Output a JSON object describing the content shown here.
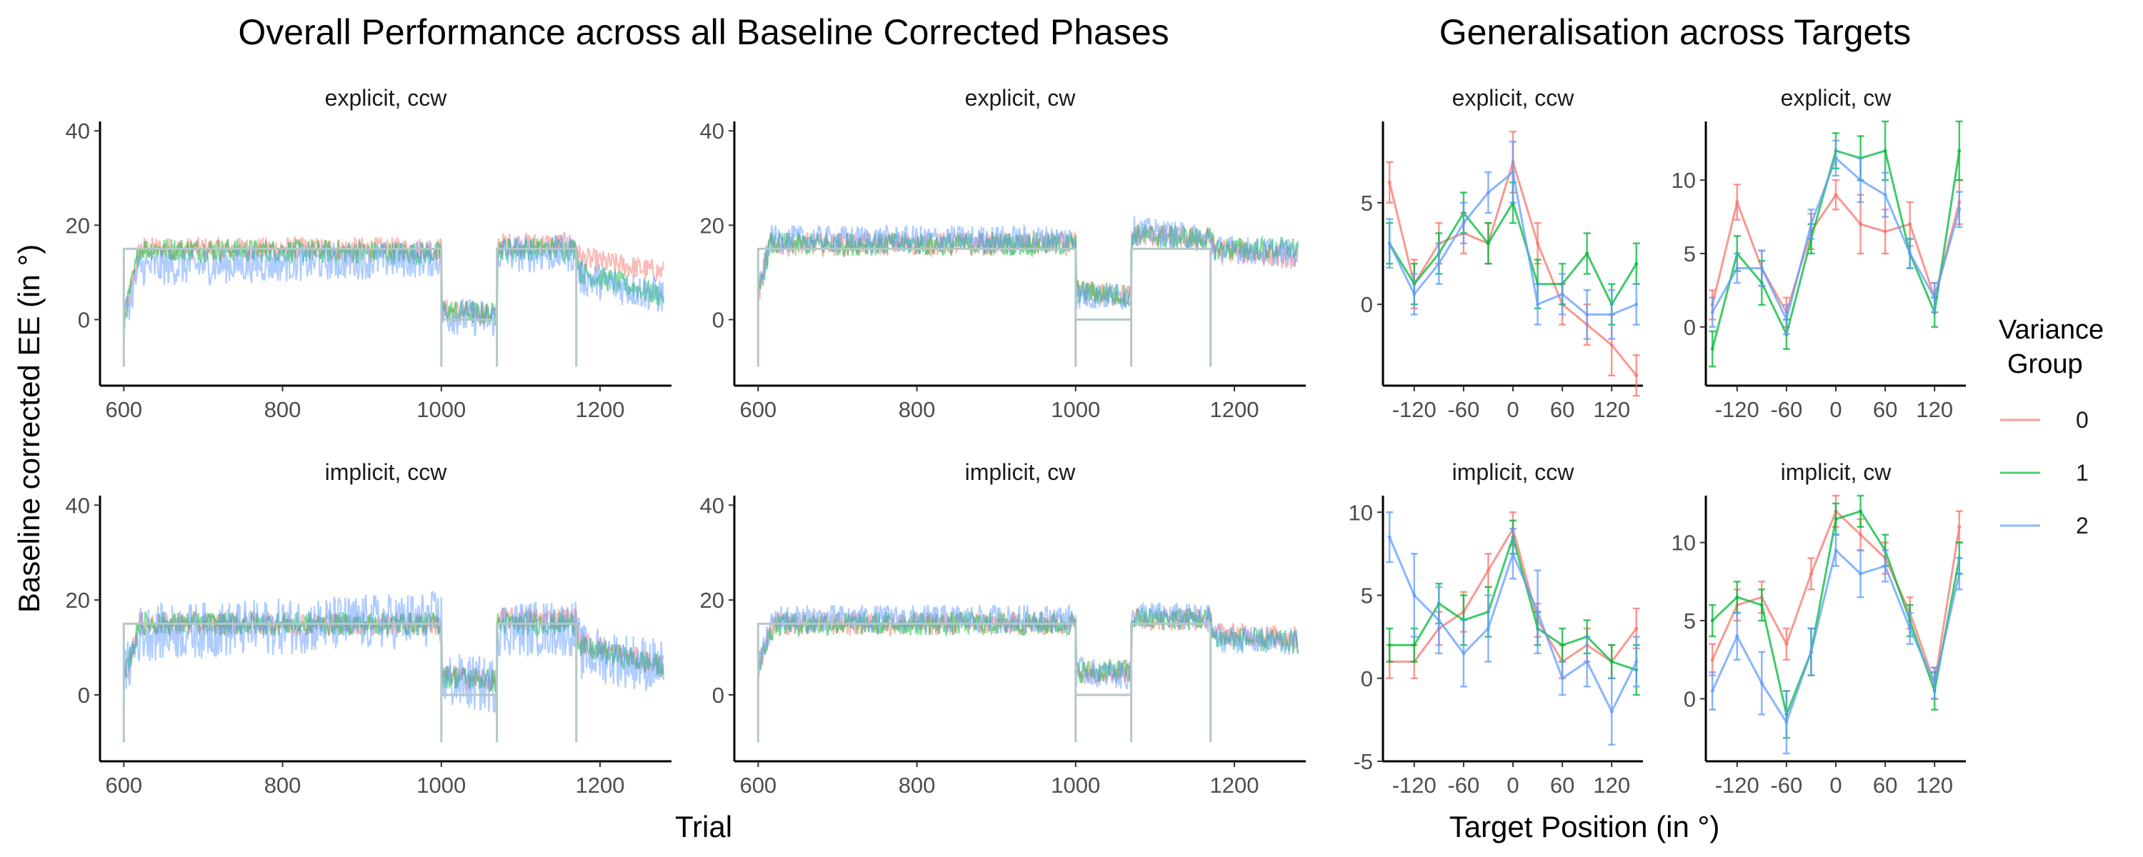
{
  "figure": {
    "title_left": "Overall Performance across all Baseline Corrected Phases",
    "title_right": "Generalisation across Targets",
    "ylabel_left": "Baseline corrected EE (in °)",
    "xlabel_left": "Trial",
    "xlabel_right": "Target Position (in °)"
  },
  "legend": {
    "title_line1": "Variance",
    "title_line2": "Group",
    "items": [
      {
        "label": "0",
        "color": "#F8766D"
      },
      {
        "label": "1",
        "color": "#00BA38"
      },
      {
        "label": "2",
        "color": "#619CFF"
      }
    ]
  },
  "chart_data": [
    {
      "type": "line",
      "panel": "explicit, ccw",
      "group": "performance",
      "xlim": [
        570,
        1290
      ],
      "ylim": [
        -14,
        42
      ],
      "xticks": [
        600,
        800,
        1000,
        1200
      ],
      "yticks": [
        0,
        20,
        40
      ],
      "reference_schedule": [
        [
          600,
          -10
        ],
        [
          600,
          15
        ],
        [
          1000,
          15
        ],
        [
          1000,
          -10
        ],
        [
          1000,
          0
        ],
        [
          1070,
          0
        ],
        [
          1070,
          -10
        ],
        [
          1070,
          15
        ],
        [
          1170,
          15
        ],
        [
          1170,
          -10
        ]
      ],
      "series_segments": {
        "0": [
          [
            600,
            0
          ],
          [
            620,
            15
          ],
          [
            1000,
            15
          ],
          [
            1000,
            2
          ],
          [
            1070,
            1
          ],
          [
            1070,
            16
          ],
          [
            1170,
            16
          ],
          [
            1175,
            13
          ],
          [
            1280,
            10
          ]
        ],
        "1": [
          [
            600,
            0
          ],
          [
            620,
            15
          ],
          [
            1000,
            14
          ],
          [
            1000,
            2
          ],
          [
            1070,
            1
          ],
          [
            1070,
            15
          ],
          [
            1170,
            15
          ],
          [
            1175,
            10
          ],
          [
            1280,
            5
          ]
        ],
        "2": [
          [
            600,
            0
          ],
          [
            620,
            11
          ],
          [
            1000,
            13
          ],
          [
            1000,
            1
          ],
          [
            1070,
            0
          ],
          [
            1070,
            14
          ],
          [
            1170,
            14
          ],
          [
            1175,
            9
          ],
          [
            1280,
            5
          ]
        ]
      },
      "noise": {
        "0": 2.5,
        "1": 2.5,
        "2": 4
      }
    },
    {
      "type": "line",
      "panel": "explicit, cw",
      "group": "performance",
      "xlim": [
        570,
        1290
      ],
      "ylim": [
        -14,
        42
      ],
      "xticks": [
        600,
        800,
        1000,
        1200
      ],
      "yticks": [
        0,
        20,
        40
      ],
      "reference_schedule": [
        [
          600,
          -10
        ],
        [
          600,
          15
        ],
        [
          1000,
          15
        ],
        [
          1000,
          -10
        ],
        [
          1000,
          0
        ],
        [
          1070,
          0
        ],
        [
          1070,
          -10
        ],
        [
          1070,
          15
        ],
        [
          1170,
          15
        ],
        [
          1170,
          -10
        ]
      ],
      "series_segments": {
        "0": [
          [
            600,
            5
          ],
          [
            615,
            16
          ],
          [
            1000,
            16
          ],
          [
            1000,
            6
          ],
          [
            1070,
            5
          ],
          [
            1070,
            18
          ],
          [
            1170,
            17
          ],
          [
            1175,
            15
          ],
          [
            1280,
            13
          ]
        ],
        "1": [
          [
            600,
            5
          ],
          [
            615,
            16
          ],
          [
            1000,
            16
          ],
          [
            1000,
            6
          ],
          [
            1070,
            5
          ],
          [
            1070,
            18
          ],
          [
            1170,
            17
          ],
          [
            1175,
            15
          ],
          [
            1280,
            15
          ]
        ],
        "2": [
          [
            600,
            5
          ],
          [
            615,
            17
          ],
          [
            1000,
            17
          ],
          [
            1000,
            5
          ],
          [
            1070,
            5
          ],
          [
            1070,
            19
          ],
          [
            1170,
            17
          ],
          [
            1175,
            15
          ],
          [
            1280,
            14
          ]
        ]
      },
      "noise": {
        "0": 2.5,
        "1": 2.5,
        "2": 3
      }
    },
    {
      "type": "line",
      "panel": "implicit, ccw",
      "group": "performance",
      "xlim": [
        570,
        1290
      ],
      "ylim": [
        -14,
        42
      ],
      "xticks": [
        600,
        800,
        1000,
        1200
      ],
      "yticks": [
        0,
        20,
        40
      ],
      "reference_schedule": [
        [
          600,
          -10
        ],
        [
          600,
          15
        ],
        [
          1000,
          15
        ],
        [
          1000,
          -10
        ],
        [
          1000,
          0
        ],
        [
          1070,
          0
        ],
        [
          1070,
          -10
        ],
        [
          1070,
          15
        ],
        [
          1170,
          15
        ],
        [
          1170,
          -10
        ]
      ],
      "series_segments": {
        "0": [
          [
            600,
            3
          ],
          [
            620,
            15
          ],
          [
            1000,
            15
          ],
          [
            1000,
            4
          ],
          [
            1070,
            3
          ],
          [
            1070,
            16
          ],
          [
            1170,
            16
          ],
          [
            1175,
            11
          ],
          [
            1280,
            6
          ]
        ],
        "1": [
          [
            600,
            3
          ],
          [
            620,
            15
          ],
          [
            1000,
            15
          ],
          [
            1000,
            4
          ],
          [
            1070,
            3
          ],
          [
            1070,
            15
          ],
          [
            1170,
            15
          ],
          [
            1175,
            10
          ],
          [
            1280,
            6
          ]
        ],
        "2": [
          [
            600,
            3
          ],
          [
            620,
            13
          ],
          [
            1000,
            16
          ],
          [
            1000,
            3
          ],
          [
            1070,
            2
          ],
          [
            1070,
            14
          ],
          [
            1170,
            14
          ],
          [
            1175,
            9
          ],
          [
            1280,
            6
          ]
        ]
      },
      "noise": {
        "0": 2.5,
        "1": 2.5,
        "2": 6
      }
    },
    {
      "type": "line",
      "panel": "implicit, cw",
      "group": "performance",
      "xlim": [
        570,
        1290
      ],
      "ylim": [
        -14,
        42
      ],
      "xticks": [
        600,
        800,
        1000,
        1200
      ],
      "yticks": [
        0,
        20,
        40
      ],
      "reference_schedule": [
        [
          600,
          -10
        ],
        [
          600,
          15
        ],
        [
          1000,
          15
        ],
        [
          1000,
          -10
        ],
        [
          1000,
          0
        ],
        [
          1070,
          0
        ],
        [
          1070,
          -10
        ],
        [
          1070,
          15
        ],
        [
          1170,
          15
        ],
        [
          1170,
          -10
        ]
      ],
      "series_segments": {
        "0": [
          [
            600,
            6
          ],
          [
            620,
            15
          ],
          [
            1000,
            15
          ],
          [
            1000,
            5
          ],
          [
            1070,
            5
          ],
          [
            1070,
            16
          ],
          [
            1170,
            16
          ],
          [
            1175,
            13
          ],
          [
            1280,
            12
          ]
        ],
        "1": [
          [
            600,
            6
          ],
          [
            620,
            15
          ],
          [
            1000,
            15
          ],
          [
            1000,
            5
          ],
          [
            1070,
            5
          ],
          [
            1070,
            16
          ],
          [
            1170,
            16
          ],
          [
            1175,
            12
          ],
          [
            1280,
            11
          ]
        ],
        "2": [
          [
            600,
            6
          ],
          [
            620,
            16
          ],
          [
            1000,
            16
          ],
          [
            1000,
            5
          ],
          [
            1070,
            4
          ],
          [
            1070,
            17
          ],
          [
            1170,
            16
          ],
          [
            1175,
            12
          ],
          [
            1280,
            11
          ]
        ]
      },
      "noise": {
        "0": 2.5,
        "1": 2.5,
        "2": 3
      }
    },
    {
      "type": "line",
      "panel": "explicit, ccw",
      "group": "generalisation",
      "xlim": [
        -158,
        158
      ],
      "ylim": [
        -4,
        9
      ],
      "xticks": [
        -120,
        -60,
        0,
        60,
        120
      ],
      "yticks": [
        0,
        5
      ],
      "x": [
        -150,
        -120,
        -90,
        -60,
        -30,
        0,
        30,
        60,
        90,
        120,
        150
      ],
      "series": [
        {
          "name": "0",
          "values": [
            6,
            1,
            3,
            3.5,
            3,
            7,
            3,
            0,
            -1,
            -2,
            -3.5
          ],
          "err": [
            1,
            1.2,
            1,
            1,
            1,
            1.5,
            1,
            1,
            1,
            1.5,
            1
          ]
        },
        {
          "name": "1",
          "values": [
            3,
            1,
            2.5,
            4.5,
            3,
            5,
            1,
            1,
            2.5,
            0,
            2
          ],
          "err": [
            1,
            1,
            1,
            1,
            1,
            1,
            1.2,
            1,
            1,
            1,
            1
          ]
        },
        {
          "name": "2",
          "values": [
            3,
            0.5,
            2,
            4,
            5.5,
            6.5,
            0,
            0.5,
            -0.5,
            -0.5,
            0
          ],
          "err": [
            1.2,
            1,
            1,
            1,
            1,
            1.5,
            1,
            1,
            1.2,
            1.2,
            1
          ]
        }
      ]
    },
    {
      "type": "line",
      "panel": "explicit, cw",
      "group": "generalisation",
      "xlim": [
        -158,
        158
      ],
      "ylim": [
        -4,
        14
      ],
      "xticks": [
        -120,
        -60,
        0,
        60,
        120
      ],
      "yticks": [
        0,
        5,
        10
      ],
      "x": [
        -150,
        -120,
        -90,
        -60,
        -30,
        0,
        30,
        60,
        90,
        120,
        150
      ],
      "series": [
        {
          "name": "0",
          "values": [
            1.5,
            8.5,
            4,
            1,
            6.5,
            9,
            7,
            6.5,
            7,
            2,
            8.5
          ],
          "err": [
            1,
            1.2,
            1.2,
            1,
            1.2,
            1,
            2,
            1.5,
            1.5,
            1,
            1.5
          ]
        },
        {
          "name": "1",
          "values": [
            -1.5,
            5,
            3,
            -0.5,
            6,
            12,
            11.5,
            12,
            5,
            1,
            12
          ],
          "err": [
            1.2,
            1.2,
            1.5,
            1,
            1,
            1.2,
            1.5,
            2,
            1,
            1,
            2
          ]
        },
        {
          "name": "2",
          "values": [
            1,
            4,
            4,
            0.5,
            7,
            11.5,
            10,
            9,
            5,
            2,
            8
          ],
          "err": [
            1,
            1,
            1.2,
            1,
            1,
            1.2,
            1.5,
            1.5,
            1,
            1,
            1.2
          ]
        }
      ]
    },
    {
      "type": "line",
      "panel": "implicit, ccw",
      "group": "generalisation",
      "xlim": [
        -158,
        158
      ],
      "ylim": [
        -5,
        11
      ],
      "xticks": [
        -120,
        -60,
        0,
        60,
        120
      ],
      "yticks": [
        -5,
        0,
        5,
        10
      ],
      "x": [
        -150,
        -120,
        -90,
        -60,
        -30,
        0,
        30,
        60,
        90,
        120,
        150
      ],
      "series": [
        {
          "name": "0",
          "values": [
            1,
            1,
            3,
            4,
            6.5,
            9,
            3.5,
            1,
            2,
            1,
            3
          ],
          "err": [
            1,
            1,
            1,
            1.2,
            1,
            1,
            1,
            1,
            1,
            1,
            1.2
          ]
        },
        {
          "name": "1",
          "values": [
            2,
            2,
            4.5,
            3.5,
            4,
            8.5,
            3,
            2,
            2.5,
            1,
            0.5
          ],
          "err": [
            1,
            1,
            1.2,
            1.5,
            1.5,
            1,
            1,
            1,
            1,
            1,
            1.5
          ]
        },
        {
          "name": "2",
          "values": [
            8.5,
            5,
            3.5,
            1.5,
            3,
            7.5,
            4,
            0,
            1,
            -2,
            1
          ],
          "err": [
            1.5,
            2.5,
            2,
            2,
            2,
            1.5,
            2.5,
            1,
            1.5,
            2,
            1.5
          ]
        }
      ]
    },
    {
      "type": "line",
      "panel": "implicit, cw",
      "group": "generalisation",
      "xlim": [
        -158,
        158
      ],
      "ylim": [
        -4,
        13
      ],
      "xticks": [
        -120,
        -60,
        0,
        60,
        120
      ],
      "yticks": [
        0,
        5,
        10
      ],
      "x": [
        -150,
        -120,
        -90,
        -60,
        -30,
        0,
        30,
        60,
        90,
        120,
        150
      ],
      "series": [
        {
          "name": "0",
          "values": [
            2.5,
            6,
            6.5,
            3.5,
            8,
            12,
            10.5,
            9,
            5.5,
            1,
            11
          ],
          "err": [
            1,
            1,
            1,
            1,
            1,
            1,
            1,
            1,
            1,
            1,
            1
          ]
        },
        {
          "name": "1",
          "values": [
            5,
            6.5,
            6,
            -1,
            3,
            11.5,
            12,
            9.5,
            5,
            0.5,
            9
          ],
          "err": [
            1,
            1,
            1,
            1.5,
            1.5,
            1,
            1,
            1,
            1,
            1.2,
            1
          ]
        },
        {
          "name": "2",
          "values": [
            0.5,
            4,
            1,
            -1.5,
            3,
            9.5,
            8,
            8.5,
            4.5,
            1,
            8
          ],
          "err": [
            1.2,
            1.5,
            2,
            2,
            1.5,
            1,
            1.5,
            1,
            1,
            1,
            1
          ]
        }
      ]
    }
  ]
}
